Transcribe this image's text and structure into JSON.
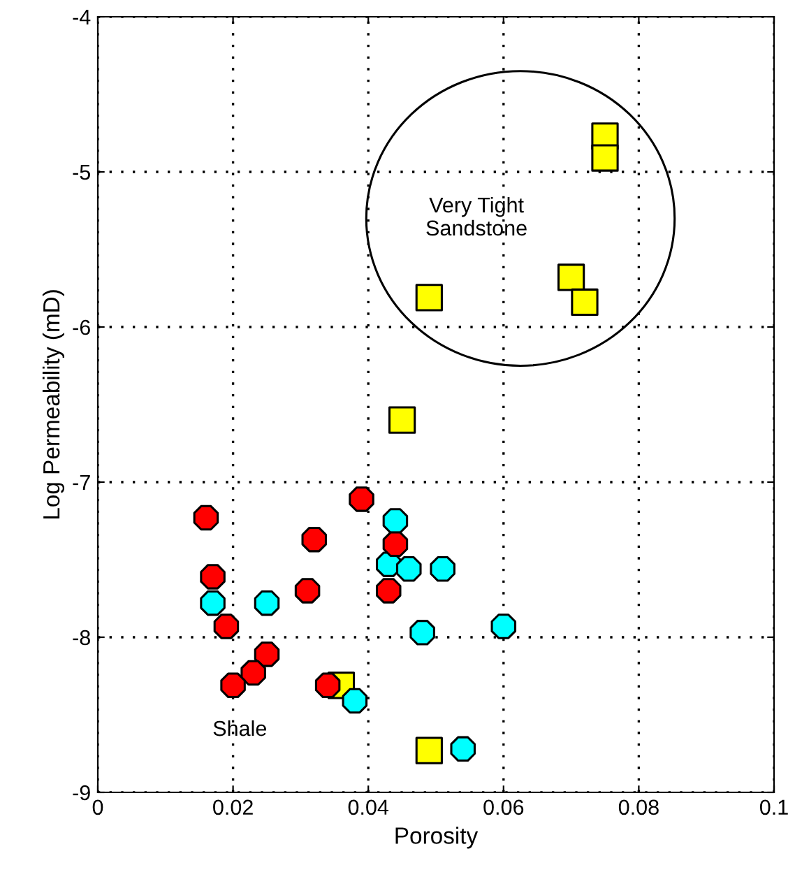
{
  "chart_data": {
    "type": "scatter",
    "xlabel": "Porosity",
    "ylabel": "Log Permeability (mD)",
    "xlim": [
      0,
      0.1
    ],
    "ylim": [
      -9,
      -4
    ],
    "xticks": [
      0,
      0.02,
      0.04,
      0.06,
      0.08,
      0.1
    ],
    "yticks": [
      -9,
      -8,
      -7,
      -6,
      -5,
      -4
    ],
    "grid": true,
    "series": [
      {
        "color": "#ff0000",
        "marker": "circle",
        "x": [
          0.016,
          0.017,
          0.019,
          0.025,
          0.023,
          0.02,
          0.032,
          0.031,
          0.039,
          0.044,
          0.043,
          0.034
        ],
        "values": [
          -7.23,
          -7.61,
          -7.93,
          -8.11,
          -8.23,
          -8.31,
          -7.37,
          -7.7,
          -7.11,
          -7.4,
          -7.7,
          -8.31
        ]
      },
      {
        "color": "#00ffff",
        "marker": "circle",
        "x": [
          0.044,
          0.043,
          0.046,
          0.051,
          0.048,
          0.06,
          0.017,
          0.025,
          0.038,
          0.054
        ],
        "values": [
          -7.25,
          -7.53,
          -7.56,
          -7.56,
          -7.97,
          -7.93,
          -7.78,
          -7.78,
          -8.41,
          -8.72
        ]
      },
      {
        "color": "#ffff00",
        "marker": "square",
        "x": [
          0.036,
          0.049,
          0.075,
          0.075,
          0.07,
          0.072,
          0.049,
          0.045
        ],
        "values": [
          -8.31,
          -8.73,
          -4.77,
          -4.91,
          -5.68,
          -5.84,
          -5.81,
          -6.6
        ]
      }
    ],
    "annotations": [
      "Very Tight\nSandstone",
      "Shale"
    ]
  }
}
